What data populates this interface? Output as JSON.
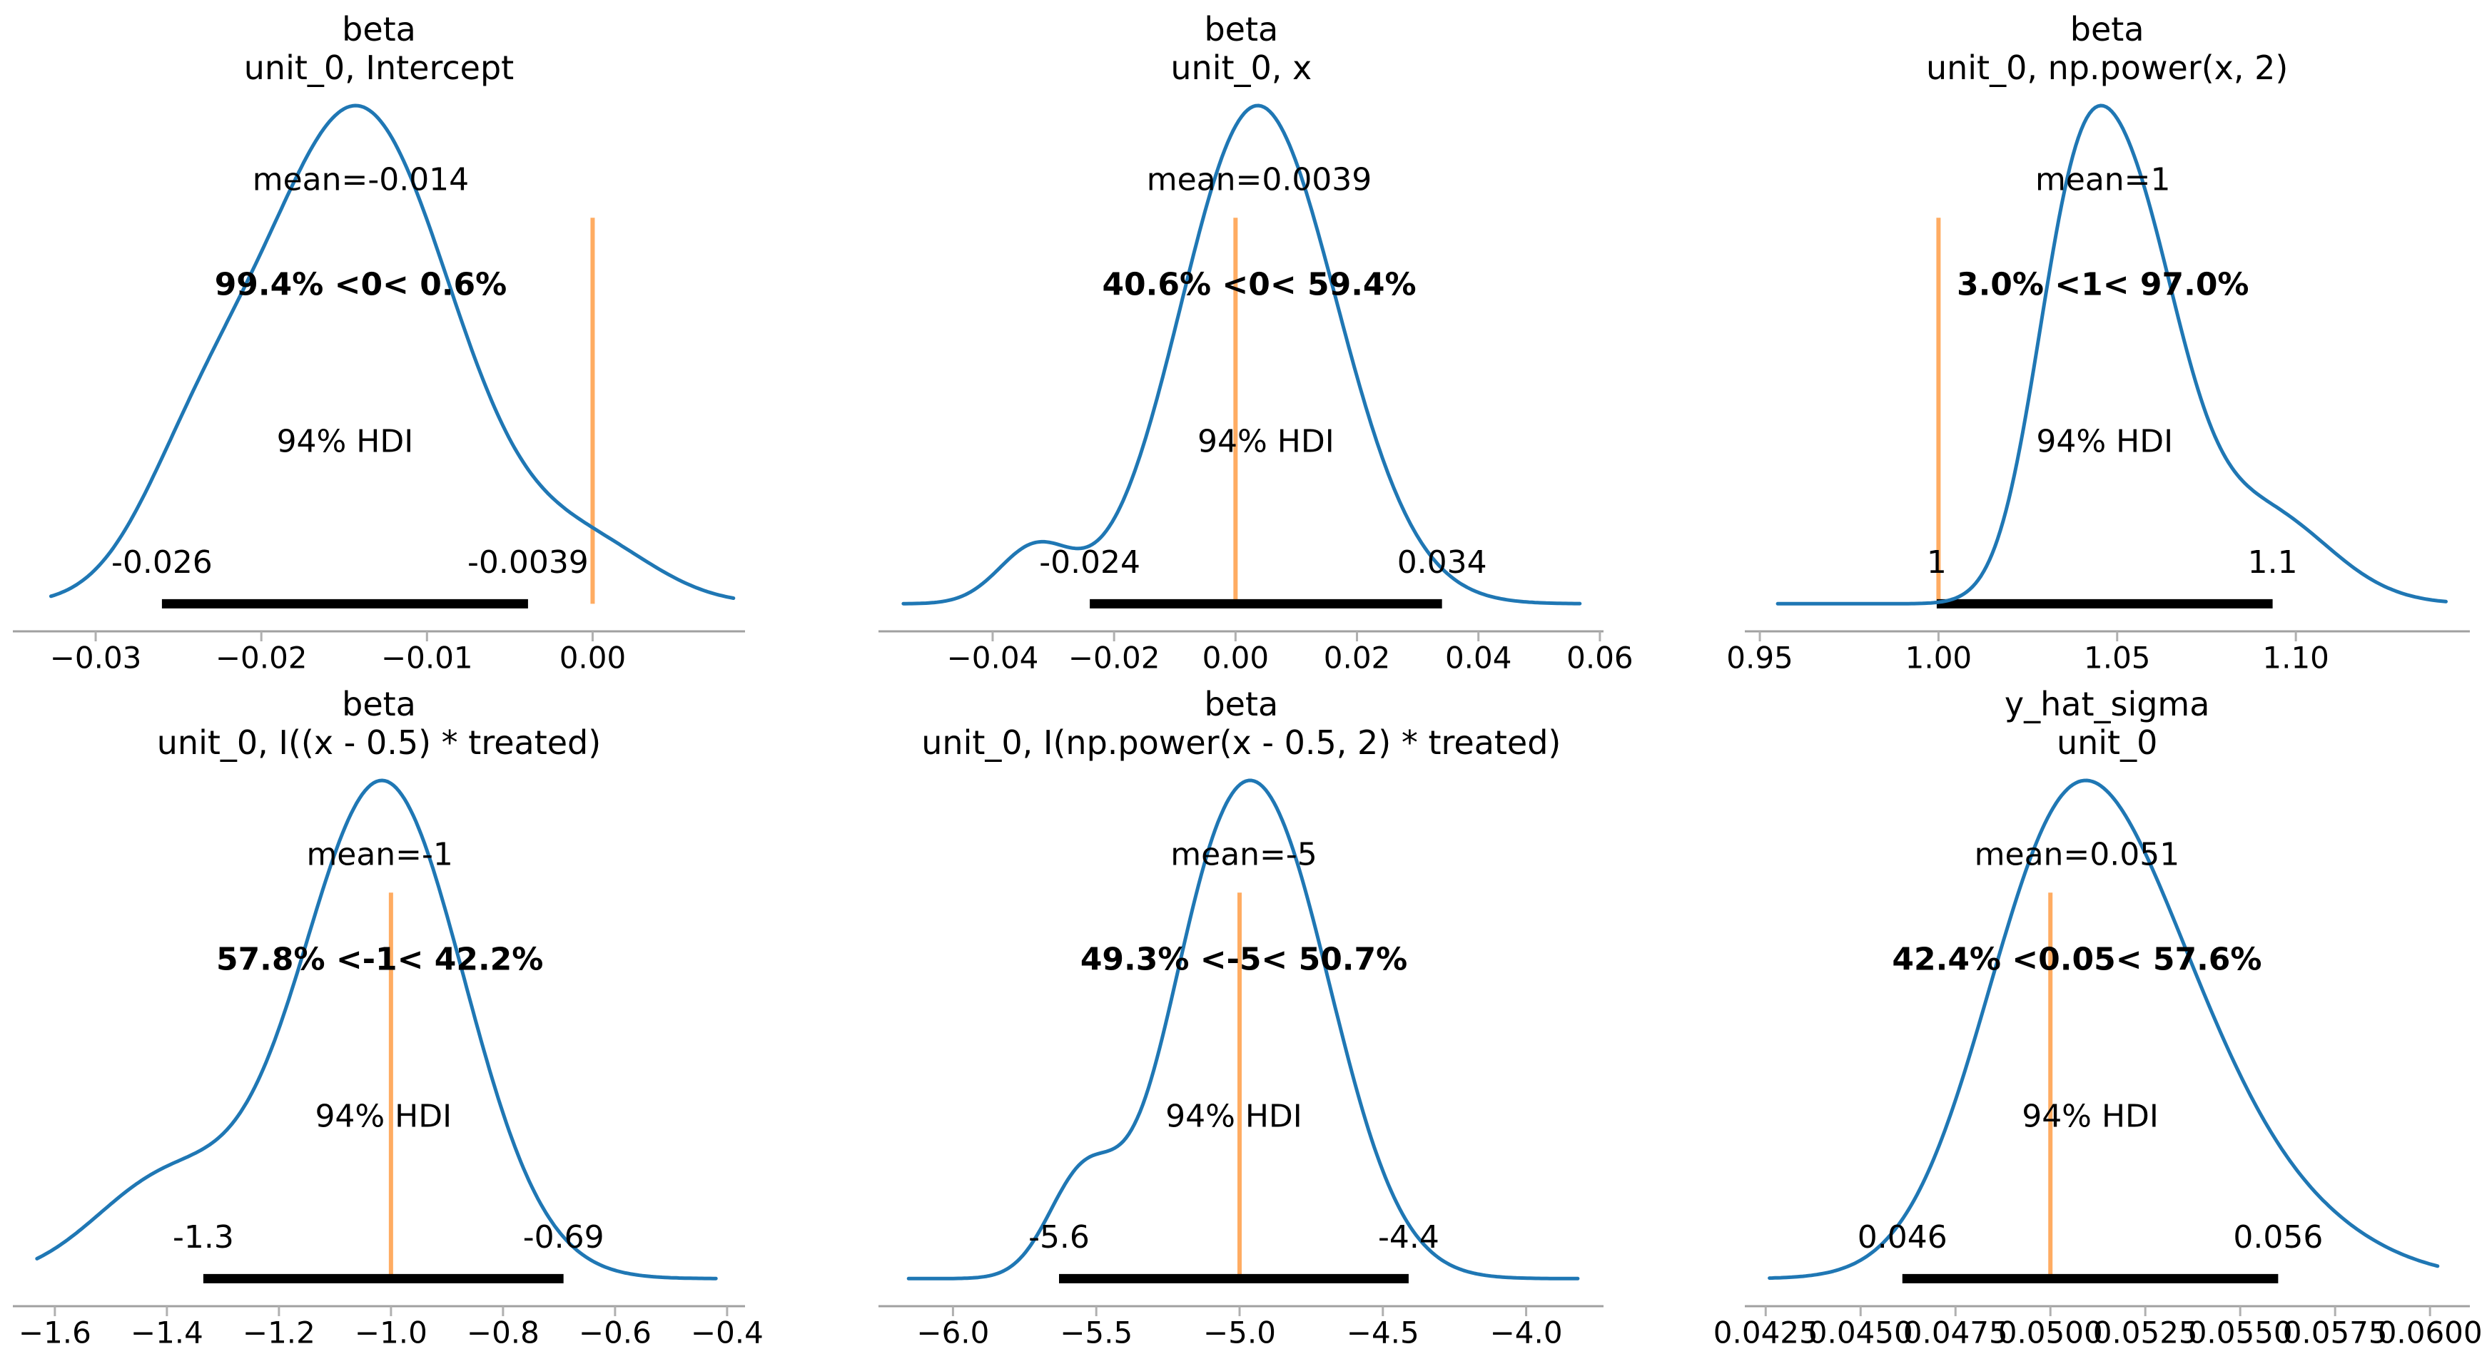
{
  "style": {
    "background": "#ffffff",
    "curve_color": "#1f77b4",
    "ref_color": "#ff7f0e",
    "ref_line_alpha": 0.65,
    "hdi_bar_color": "#000000",
    "spine_color": "#a0a0a0",
    "tick_color": "#b0b0b0",
    "text_color": "#000000"
  },
  "chart_data": [
    {
      "type": "kde",
      "title": "beta",
      "subtitle": "unit_0, Intercept",
      "xlim": [
        -0.035,
        0.0092
      ],
      "xticks": [
        {
          "v": -0.03,
          "label": "−0.03"
        },
        {
          "v": -0.02,
          "label": "−0.02"
        },
        {
          "v": -0.01,
          "label": "−0.01"
        },
        {
          "v": 0.0,
          "label": "0.00"
        }
      ],
      "mean": {
        "value": -0.014,
        "label": "mean=-0.014"
      },
      "ref": {
        "value": 0.0,
        "label": "99.4% <0< 0.6%"
      },
      "hdi": {
        "lo": -0.026,
        "hi": -0.0039,
        "lo_label": "-0.026",
        "hi_label": "-0.0039",
        "label": "94% HDI"
      },
      "curve": {
        "x_range": [
          -0.0327,
          0.0085
        ],
        "components": [
          {
            "mu": -0.0142,
            "sigma": 0.0058,
            "w": 0.84
          },
          {
            "mu": -0.024,
            "sigma": 0.0035,
            "w": 0.1
          },
          {
            "mu": 0.0,
            "sigma": 0.004,
            "w": 0.06
          }
        ]
      }
    },
    {
      "type": "kde",
      "title": "beta",
      "subtitle": "unit_0, x",
      "xlim": [
        -0.0588,
        0.0606
      ],
      "xticks": [
        {
          "v": -0.04,
          "label": "−0.04"
        },
        {
          "v": -0.02,
          "label": "−0.02"
        },
        {
          "v": 0.0,
          "label": "0.00"
        },
        {
          "v": 0.02,
          "label": "0.02"
        },
        {
          "v": 0.04,
          "label": "0.04"
        },
        {
          "v": 0.06,
          "label": "0.06"
        }
      ],
      "mean": {
        "value": 0.0039,
        "label": "mean=0.0039"
      },
      "ref": {
        "value": 0.0,
        "label": "40.6% <0< 59.4%"
      },
      "hdi": {
        "lo": -0.024,
        "hi": 0.034,
        "lo_label": "-0.024",
        "hi_label": "0.034",
        "label": "94% HDI"
      },
      "curve": {
        "x_range": [
          -0.0547,
          0.0567
        ],
        "components": [
          {
            "mu": 0.0,
            "sigma": 0.0115,
            "w": 0.475
          },
          {
            "mu": 0.0085,
            "sigma": 0.0125,
            "w": 0.475
          },
          {
            "mu": -0.033,
            "sigma": 0.006,
            "w": 0.05
          }
        ]
      }
    },
    {
      "type": "kde",
      "title": "beta",
      "subtitle": "unit_0, np.power(x, 2)",
      "xlim": [
        0.9458,
        1.1487
      ],
      "xticks": [
        {
          "v": 0.95,
          "label": "0.95"
        },
        {
          "v": 1.0,
          "label": "1.00"
        },
        {
          "v": 1.05,
          "label": "1.05"
        },
        {
          "v": 1.1,
          "label": "1.10"
        }
      ],
      "mean": {
        "value": 1.046,
        "label": "mean=1"
      },
      "ref": {
        "value": 1.0,
        "label": "3.0% <1< 97.0%"
      },
      "hdi": {
        "lo": 0.9995,
        "hi": 1.0935,
        "lo_label": "1",
        "hi_label": "1.1",
        "label": "94% HDI"
      },
      "curve": {
        "x_range": [
          0.955,
          1.142
        ],
        "components": [
          {
            "mu": 1.036,
            "sigma": 0.011,
            "w": 0.26
          },
          {
            "mu": 1.053,
            "sigma": 0.0145,
            "w": 0.56
          },
          {
            "mu": 1.09,
            "sigma": 0.019,
            "w": 0.18
          }
        ]
      }
    },
    {
      "type": "kde",
      "title": "beta",
      "subtitle": "unit_0, I((x - 0.5) * treated)",
      "xlim": [
        -1.675,
        -0.368
      ],
      "xticks": [
        {
          "v": -1.6,
          "label": "−1.6"
        },
        {
          "v": -1.4,
          "label": "−1.4"
        },
        {
          "v": -1.2,
          "label": "−1.2"
        },
        {
          "v": -1.0,
          "label": "−1.0"
        },
        {
          "v": -0.8,
          "label": "−0.8"
        },
        {
          "v": -0.6,
          "label": "−0.6"
        },
        {
          "v": -0.4,
          "label": "−0.4"
        }
      ],
      "mean": {
        "value": -1.02,
        "label": "mean=-1"
      },
      "ref": {
        "value": -1.0,
        "label": "57.8% <-1< 42.2%"
      },
      "hdi": {
        "lo": -1.335,
        "hi": -0.692,
        "lo_label": "-1.3",
        "hi_label": "-0.69",
        "label": "94% HDI"
      },
      "curve": {
        "x_range": [
          -1.632,
          -0.42
        ],
        "components": [
          {
            "mu": -1.015,
            "sigma": 0.145,
            "w": 0.85
          },
          {
            "mu": -1.4,
            "sigma": 0.13,
            "w": 0.15
          }
        ]
      }
    },
    {
      "type": "kde",
      "title": "beta",
      "subtitle": "unit_0, I(np.power(x - 0.5, 2) * treated)",
      "xlim": [
        -6.26,
        -3.73
      ],
      "xticks": [
        {
          "v": -6.0,
          "label": "−6.0"
        },
        {
          "v": -5.5,
          "label": "−5.5"
        },
        {
          "v": -5.0,
          "label": "−5.0"
        },
        {
          "v": -4.5,
          "label": "−4.5"
        },
        {
          "v": -4.0,
          "label": "−4.0"
        }
      ],
      "mean": {
        "value": -4.985,
        "label": "mean=-5"
      },
      "ref": {
        "value": -5.0,
        "label": "49.3% <-5< 50.7%"
      },
      "hdi": {
        "lo": -5.63,
        "hi": -4.41,
        "lo_label": "-5.6",
        "hi_label": "-4.4",
        "label": "94% HDI"
      },
      "curve": {
        "x_range": [
          -6.155,
          -3.82
        ],
        "components": [
          {
            "mu": -4.93,
            "sigma": 0.25,
            "w": 0.85
          },
          {
            "mu": -5.55,
            "sigma": 0.12,
            "w": 0.08
          },
          {
            "mu": -5.15,
            "sigma": 0.15,
            "w": 0.07
          }
        ]
      }
    },
    {
      "type": "kde",
      "title": "y_hat_sigma",
      "subtitle": "unit_0",
      "xlim": [
        0.04195,
        0.06105
      ],
      "xticks": [
        {
          "v": 0.0425,
          "label": "0.0425"
        },
        {
          "v": 0.045,
          "label": "0.0450"
        },
        {
          "v": 0.0475,
          "label": "0.0475"
        },
        {
          "v": 0.05,
          "label": "0.0500"
        },
        {
          "v": 0.0525,
          "label": "0.0525"
        },
        {
          "v": 0.055,
          "label": "0.0550"
        },
        {
          "v": 0.0575,
          "label": "0.0575"
        },
        {
          "v": 0.06,
          "label": "0.0600"
        }
      ],
      "mean": {
        "value": 0.0507,
        "label": "mean=0.051"
      },
      "ref": {
        "value": 0.05,
        "label": "42.4% <0.05< 57.6%"
      },
      "hdi": {
        "lo": 0.0461,
        "hi": 0.056,
        "lo_label": "0.046",
        "hi_label": "0.056",
        "label": "94% HDI"
      },
      "curve": {
        "x_range": [
          0.0426,
          0.0602
        ],
        "components": [
          {
            "mu": 0.0502,
            "sigma": 0.0021,
            "w": 0.6
          },
          {
            "mu": 0.0529,
            "sigma": 0.0021,
            "w": 0.28
          },
          {
            "mu": 0.0556,
            "sigma": 0.0025,
            "w": 0.12
          }
        ]
      }
    }
  ]
}
